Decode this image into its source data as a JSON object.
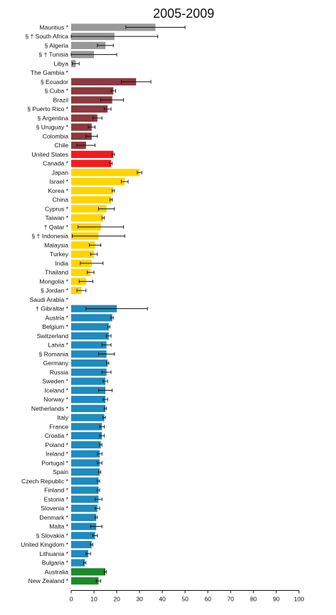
{
  "chart_data": {
    "type": "bar",
    "orientation": "horizontal",
    "title": "2005-2009",
    "xlabel": "",
    "ylabel": "",
    "xlim": [
      0,
      100
    ],
    "x_ticks": [
      0,
      10,
      20,
      30,
      40,
      50,
      60,
      70,
      80,
      90,
      100
    ],
    "grid": false,
    "legend": "none",
    "error_bars": true,
    "colors": {
      "africa": "#999999",
      "latin_america": "#8b3a3f",
      "north_america": "#f41b1b",
      "asia": "#ffd400",
      "europe": "#1f8bbf",
      "oceania": "#1b8a2a",
      "error_bar": "#111111"
    },
    "categories": [
      "Mauritius *",
      "§ † South Africa",
      "§ Algeria",
      "§ † Tunisia",
      "Libya",
      "The Gambia *",
      "§ Ecuador",
      "§ Cuba *",
      "Brazil",
      "§ Puerto Rico *",
      "§ Argentina",
      "§ Uruguay *",
      "Colombia",
      "Chile",
      "United States",
      "Canada *",
      "Japan",
      "Israel *",
      "Korea *",
      "China",
      "Cyprus *",
      "Taiwan *",
      "† Qatar *",
      "§ † Indonesia",
      "Malaysia",
      "Turkey",
      "India",
      "Thailand",
      "Mongolia *",
      "§ Jordan *",
      "Saudi Arabia *",
      "† Gibraltar *",
      "Austria *",
      "Belgium *",
      "Switzerland",
      "Latvia *",
      "§ Romania",
      "Germany",
      "Russia",
      "Sweden *",
      "Iceland *",
      "Norway *",
      "Netherlands *",
      "Italy",
      "France",
      "Croatia *",
      "Poland *",
      "Ireland *",
      "Portugal *",
      "Spain",
      "Czech Republic *",
      "Finland *",
      "Estonia *",
      "Slovenia *",
      "Denmark *",
      "Malta *",
      "§ Slovakia *",
      "United Kingdom *",
      "Lithuania *",
      "Bulgaria *",
      "Australia",
      "New Zealand *"
    ],
    "groups": [
      "africa",
      "africa",
      "africa",
      "africa",
      "africa",
      "africa",
      "latin_america",
      "latin_america",
      "latin_america",
      "latin_america",
      "latin_america",
      "latin_america",
      "latin_america",
      "latin_america",
      "north_america",
      "north_america",
      "asia",
      "asia",
      "asia",
      "asia",
      "asia",
      "asia",
      "asia",
      "asia",
      "asia",
      "asia",
      "asia",
      "asia",
      "asia",
      "asia",
      "asia",
      "europe",
      "europe",
      "europe",
      "europe",
      "europe",
      "europe",
      "europe",
      "europe",
      "europe",
      "europe",
      "europe",
      "europe",
      "europe",
      "europe",
      "europe",
      "europe",
      "europe",
      "europe",
      "europe",
      "europe",
      "europe",
      "europe",
      "europe",
      "europe",
      "europe",
      "europe",
      "europe",
      "europe",
      "europe",
      "oceania",
      "oceania"
    ],
    "values": [
      37,
      19,
      15,
      10,
      2,
      0,
      28.5,
      18.5,
      18,
      16,
      11.5,
      9,
      9,
      6.5,
      18.5,
      17.5,
      30,
      23.5,
      18.5,
      17.5,
      15.5,
      14,
      13,
      12,
      10.5,
      10,
      9,
      8.5,
      6.5,
      4.5,
      0,
      20,
      18,
      16.5,
      16.5,
      15.5,
      15.5,
      16,
      15.5,
      15,
      15,
      15,
      15,
      14.5,
      13.5,
      13.5,
      13,
      12.5,
      12.5,
      12.5,
      12,
      12,
      12,
      11.5,
      11,
      11,
      10.5,
      9,
      7.5,
      6,
      15,
      12
    ],
    "errors": [
      13,
      19,
      3.5,
      10,
      1.5,
      0,
      6.5,
      1,
      5,
      1.5,
      2,
      1.5,
      2.5,
      4,
      0.5,
      0.5,
      1,
      1.5,
      0.5,
      0.5,
      3.5,
      0.5,
      10,
      11.5,
      2.5,
      1.5,
      5,
      1.5,
      3,
      2,
      0,
      13.5,
      0.5,
      0.5,
      1,
      2,
      3.5,
      0.5,
      2,
      1,
      3,
      1,
      0.5,
      0.5,
      1,
      1,
      0.5,
      1,
      1,
      0.5,
      0.5,
      0.5,
      1.5,
      1,
      0.5,
      2.5,
      1,
      0.5,
      1,
      0.5,
      0.5,
      1
    ]
  }
}
